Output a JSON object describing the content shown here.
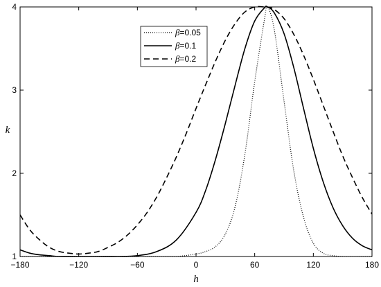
{
  "chart_data": {
    "type": "line",
    "title": "",
    "xlabel": "h",
    "ylabel": "k",
    "xlim": [
      -180,
      180
    ],
    "ylim": [
      1,
      4
    ],
    "xticks": [
      -180,
      -120,
      -60,
      0,
      60,
      120,
      180
    ],
    "yticks": [
      1,
      2,
      3,
      4
    ],
    "grid": false,
    "legend_position": "top-center",
    "series": [
      {
        "name": "β=0.05",
        "legend_symbol": "β",
        "legend_value": "=0.05",
        "style": "dotted",
        "x": [
          -180,
          -150,
          -120,
          -90,
          -60,
          -40,
          -20,
          0,
          10,
          20,
          30,
          40,
          50,
          60,
          70,
          73,
          80,
          90,
          100,
          110,
          120,
          130,
          140,
          150,
          160,
          170,
          180
        ],
        "y": [
          1.0,
          1.0,
          1.0,
          1.0,
          1.0,
          1.0,
          1.0,
          1.03,
          1.06,
          1.12,
          1.27,
          1.6,
          2.23,
          3.1,
          3.85,
          4.0,
          3.73,
          2.87,
          2.03,
          1.47,
          1.16,
          1.04,
          1.01,
          1.0,
          1.0,
          1.0,
          1.0
        ]
      },
      {
        "name": "β=0.1",
        "legend_symbol": "β",
        "legend_value": "=0.1",
        "style": "solid",
        "x": [
          -180,
          -170,
          -160,
          -150,
          -140,
          -120,
          -100,
          -80,
          -60,
          -40,
          -20,
          0,
          10,
          20,
          30,
          40,
          50,
          60,
          70,
          73,
          80,
          90,
          100,
          110,
          120,
          130,
          140,
          150,
          160,
          170,
          180
        ],
        "y": [
          1.08,
          1.04,
          1.02,
          1.01,
          1.0,
          1.0,
          1.0,
          1.0,
          1.01,
          1.06,
          1.2,
          1.53,
          1.8,
          2.17,
          2.6,
          3.06,
          3.5,
          3.83,
          3.99,
          4.0,
          3.93,
          3.68,
          3.27,
          2.78,
          2.3,
          1.9,
          1.59,
          1.37,
          1.22,
          1.13,
          1.08
        ]
      },
      {
        "name": "β=0.2",
        "legend_symbol": "β",
        "legend_value": "=0.2",
        "style": "dashed",
        "x": [
          -180,
          -170,
          -160,
          -150,
          -140,
          -130,
          -120,
          -110,
          -100,
          -90,
          -80,
          -70,
          -60,
          -50,
          -40,
          -30,
          -20,
          -10,
          0,
          10,
          20,
          30,
          40,
          50,
          60,
          70,
          73,
          80,
          90,
          100,
          110,
          120,
          130,
          140,
          150,
          160,
          170,
          180
        ],
        "y": [
          1.5,
          1.32,
          1.2,
          1.11,
          1.06,
          1.04,
          1.03,
          1.04,
          1.06,
          1.11,
          1.17,
          1.26,
          1.38,
          1.53,
          1.72,
          1.95,
          2.2,
          2.48,
          2.78,
          3.07,
          3.35,
          3.6,
          3.8,
          3.94,
          4.0,
          4.0,
          4.0,
          3.97,
          3.86,
          3.67,
          3.42,
          3.13,
          2.82,
          2.51,
          2.21,
          1.95,
          1.71,
          1.51
        ]
      }
    ]
  },
  "colors": {
    "line": "#000000",
    "axis": "#000000",
    "background": "#ffffff"
  }
}
